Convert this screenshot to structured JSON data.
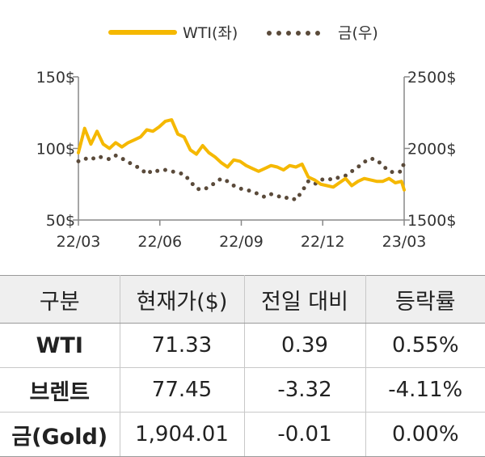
{
  "chart_data": {
    "type": "line",
    "x_ticks": [
      "22/03",
      "22/06",
      "22/09",
      "22/12",
      "23/03"
    ],
    "y_left": {
      "ticks": [
        "50$",
        "100$",
        "150$"
      ],
      "range": [
        50,
        150
      ]
    },
    "y_right": {
      "ticks": [
        "1500$",
        "2000$",
        "2500$"
      ],
      "range": [
        1500,
        2500
      ]
    },
    "series": [
      {
        "name": "WTI(좌)",
        "axis": "left",
        "color": "#f5b800",
        "style": "solid",
        "x": [
          "2022-03-01",
          "2022-03-08",
          "2022-03-15",
          "2022-03-22",
          "2022-03-29",
          "2022-04-05",
          "2022-04-12",
          "2022-04-19",
          "2022-04-26",
          "2022-05-03",
          "2022-05-10",
          "2022-05-17",
          "2022-05-24",
          "2022-05-31",
          "2022-06-07",
          "2022-06-14",
          "2022-06-21",
          "2022-06-28",
          "2022-07-05",
          "2022-07-12",
          "2022-07-19",
          "2022-07-26",
          "2022-08-02",
          "2022-08-09",
          "2022-08-16",
          "2022-08-23",
          "2022-08-30",
          "2022-09-06",
          "2022-09-13",
          "2022-09-20",
          "2022-09-27",
          "2022-10-04",
          "2022-10-11",
          "2022-10-18",
          "2022-10-25",
          "2022-11-01",
          "2022-11-08",
          "2022-11-15",
          "2022-11-22",
          "2022-11-29",
          "2022-12-06",
          "2022-12-13",
          "2022-12-20",
          "2022-12-27",
          "2023-01-03",
          "2023-01-10",
          "2023-01-17",
          "2023-01-24",
          "2023-01-31",
          "2023-02-07",
          "2023-02-14",
          "2023-02-21",
          "2023-02-28",
          "2023-03-03"
        ],
        "values": [
          97,
          114,
          103,
          112,
          103,
          100,
          104,
          101,
          104,
          106,
          108,
          113,
          112,
          115,
          119,
          120,
          110,
          108,
          99,
          96,
          102,
          97,
          94,
          90,
          87,
          92,
          91,
          88,
          86,
          84,
          86,
          88,
          87,
          85,
          88,
          87,
          89,
          80,
          78,
          75,
          74,
          73,
          76,
          79,
          74,
          77,
          79,
          78,
          77,
          77,
          79,
          76,
          77,
          71
        ]
      },
      {
        "name": "금(우)",
        "axis": "right",
        "color": "#5a4a3a",
        "style": "dotted",
        "x": [
          "2022-03-01",
          "2022-03-08",
          "2022-03-15",
          "2022-03-22",
          "2022-03-29",
          "2022-04-05",
          "2022-04-12",
          "2022-04-19",
          "2022-04-26",
          "2022-05-03",
          "2022-05-10",
          "2022-05-17",
          "2022-05-24",
          "2022-05-31",
          "2022-06-07",
          "2022-06-14",
          "2022-06-21",
          "2022-06-28",
          "2022-07-05",
          "2022-07-12",
          "2022-07-19",
          "2022-07-26",
          "2022-08-02",
          "2022-08-09",
          "2022-08-16",
          "2022-08-23",
          "2022-08-30",
          "2022-09-06",
          "2022-09-13",
          "2022-09-20",
          "2022-09-27",
          "2022-10-04",
          "2022-10-11",
          "2022-10-18",
          "2022-10-25",
          "2022-11-01",
          "2022-11-08",
          "2022-11-15",
          "2022-11-22",
          "2022-11-29",
          "2022-12-06",
          "2022-12-13",
          "2022-12-20",
          "2022-12-27",
          "2023-01-03",
          "2023-01-10",
          "2023-01-17",
          "2023-01-24",
          "2023-01-31",
          "2023-02-07",
          "2023-02-14",
          "2023-02-21",
          "2023-02-28",
          "2023-03-03"
        ],
        "values": [
          1910,
          1930,
          1920,
          1945,
          1935,
          1925,
          1950,
          1930,
          1905,
          1880,
          1860,
          1820,
          1850,
          1840,
          1850,
          1840,
          1830,
          1820,
          1770,
          1720,
          1710,
          1730,
          1760,
          1790,
          1770,
          1740,
          1720,
          1710,
          1700,
          1680,
          1660,
          1680,
          1670,
          1650,
          1660,
          1640,
          1700,
          1770,
          1750,
          1780,
          1790,
          1780,
          1800,
          1810,
          1840,
          1870,
          1905,
          1930,
          1920,
          1880,
          1840,
          1830,
          1840,
          1904
        ]
      }
    ]
  },
  "table": {
    "headers": [
      "구분",
      "현재가($)",
      "전일 대비",
      "등락률"
    ],
    "rows": [
      {
        "label": "WTI",
        "price": "71.33",
        "change": "0.39",
        "rate": "0.55%"
      },
      {
        "label": "브렌트",
        "price": "77.45",
        "change": "-3.32",
        "rate": "-4.11%"
      },
      {
        "label": "금(Gold)",
        "price": "1,904.01",
        "change": "-0.01",
        "rate": "0.00%"
      }
    ]
  }
}
